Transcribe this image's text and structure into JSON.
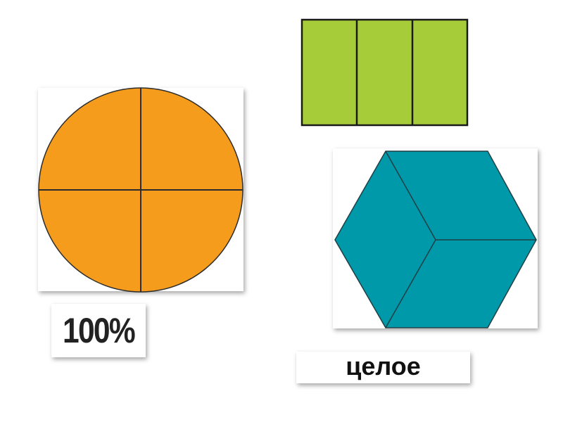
{
  "labels": {
    "percent": "100%",
    "whole": "целое"
  },
  "colors": {
    "circle": "#f59c1c",
    "rectangle": "#a6cc3a",
    "hexagon": "#0099aa",
    "outline": "#2b2b2b"
  },
  "shapes": {
    "circle_parts": 4,
    "rectangle_parts": 3,
    "hexagon_parts": 3
  }
}
